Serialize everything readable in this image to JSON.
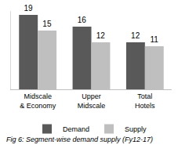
{
  "chart_data": {
    "type": "bar",
    "title": "Fig 6: Segment-wise demand supply (Fy12-17)",
    "categories": [
      "Midscale & Economy",
      "Upper Midscale",
      "Total Hotels"
    ],
    "series": [
      {
        "name": "Demand",
        "color": "#595959",
        "values": [
          19,
          16,
          12
        ]
      },
      {
        "name": "Supply",
        "color": "#bfbfbf",
        "values": [
          15,
          12,
          11
        ]
      }
    ],
    "ylim": [
      0,
      20
    ],
    "yticks": [],
    "grid": false,
    "legend": "bottom",
    "data_labels": true,
    "tick_labels": "x"
  }
}
